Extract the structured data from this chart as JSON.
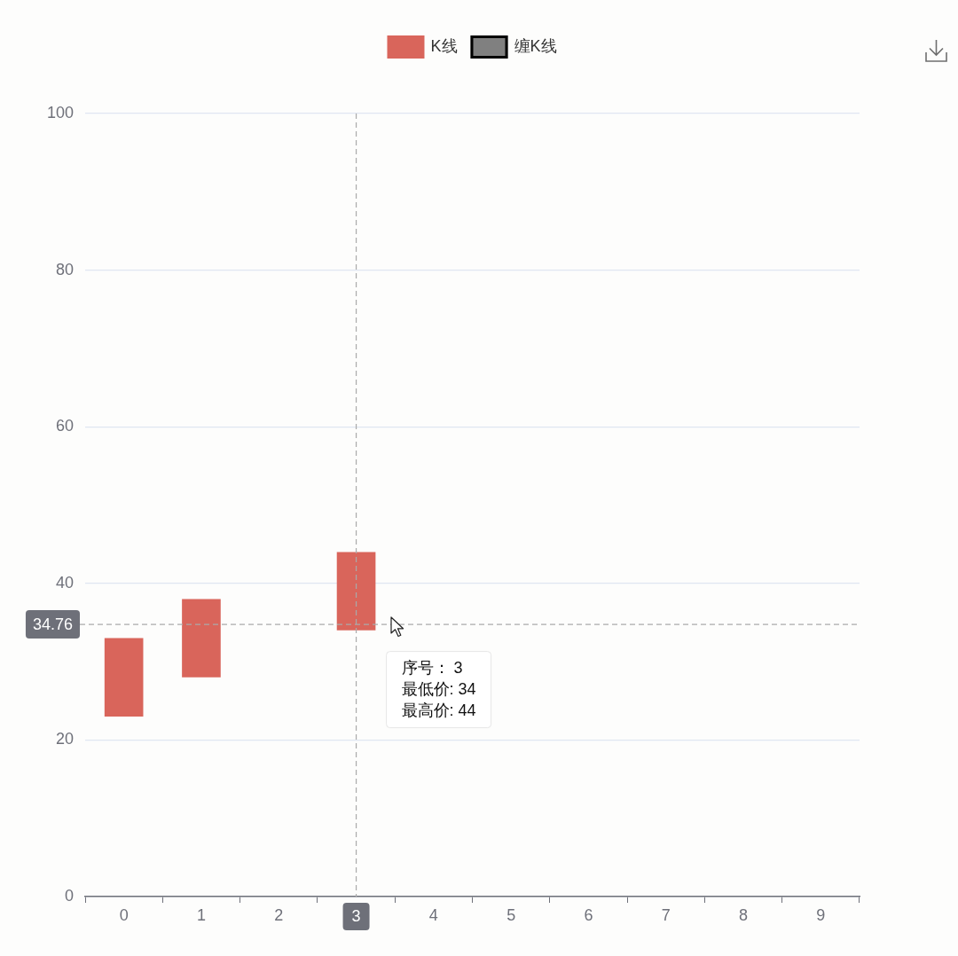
{
  "chart_data": {
    "type": "bar",
    "categories": [
      "0",
      "1",
      "2",
      "3",
      "4",
      "5",
      "6",
      "7",
      "8",
      "9"
    ],
    "series": [
      {
        "name": "K线",
        "color": "#d9655b",
        "values": [
          10,
          10,
          null,
          10,
          null,
          null,
          null,
          null,
          null,
          null
        ],
        "base": [
          23,
          28,
          null,
          34,
          null,
          null,
          null,
          null,
          null,
          null
        ]
      },
      {
        "name": "缠K线",
        "color": "#808080",
        "values": [
          null,
          null,
          null,
          null,
          null,
          null,
          null,
          null,
          null,
          null
        ]
      }
    ],
    "ylim": [
      0,
      100
    ],
    "yticks": [
      0,
      20,
      40,
      60,
      80,
      100
    ],
    "grid": "y",
    "legend": "top",
    "ref_lines": [
      {
        "axis": "x",
        "value": "3",
        "label": "3",
        "color": "#aaaaaa",
        "line_style": "dashed"
      },
      {
        "axis": "y",
        "value": 34.76,
        "label": "34.76",
        "color": "#aaaaaa",
        "line_style": "dashed"
      }
    ],
    "annotations": [
      "序号： 3\n最低价: 34\n最高价: 44"
    ]
  }
}
